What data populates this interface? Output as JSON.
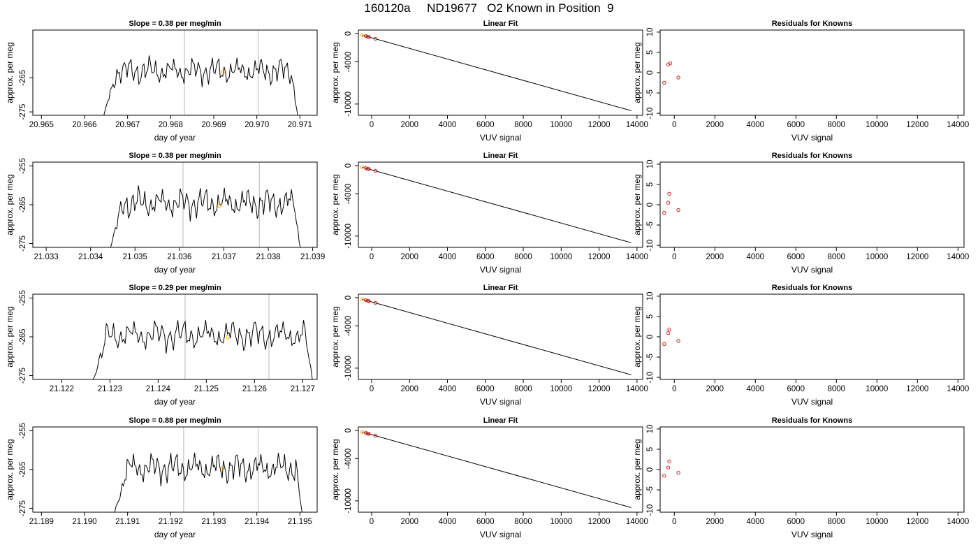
{
  "title": "160120a     ND19677   O2 Known in Position  9",
  "colors": {
    "trace": "#000000",
    "known_marker": "#ffa500",
    "resid_marker": "#cc2222",
    "vline": "#c8c8c8"
  },
  "chart_data": [
    {
      "type": "line",
      "title": "Slope =  0.38  per meg/min",
      "xlabel": "day of year",
      "ylabel": "approx. per meg",
      "xlim": [
        20.9648,
        20.9714
      ],
      "ylim": [
        -276,
        -251
      ],
      "xticks": [
        "20.965",
        "20.966",
        "20.967",
        "20.968",
        "20.969",
        "20.970",
        "20.971"
      ],
      "yticks": [
        "-275",
        "-265"
      ],
      "vlines": [
        20.96832,
        20.97003
      ],
      "trace_start": 20.96645,
      "trace_end": 20.97095,
      "known_point": {
        "x": 20.96922,
        "y": -263.2
      }
    },
    {
      "type": "line",
      "title": "Slope =  0.38  per meg/min",
      "xlabel": "day of year",
      "ylabel": "approx. per meg",
      "xlim": [
        21.0327,
        21.0391
      ],
      "ylim": [
        -276,
        -254
      ],
      "xticks": [
        "21.033",
        "21.034",
        "21.035",
        "21.036",
        "21.037",
        "21.038",
        "21.039"
      ],
      "yticks": [
        "-275",
        "-265",
        "-255"
      ],
      "vlines": [
        21.03608,
        21.0378
      ],
      "trace_start": 21.03445,
      "trace_end": 21.03872,
      "known_point": {
        "x": 21.0369,
        "y": -265.2
      }
    },
    {
      "type": "line",
      "title": "Slope =  0.29  per meg/min",
      "xlabel": "day of year",
      "ylabel": "approx. per meg",
      "xlim": [
        21.1214,
        21.1273
      ],
      "ylim": [
        -276,
        -254
      ],
      "xticks": [
        "21.122",
        "21.123",
        "21.124",
        "21.125",
        "21.126",
        "21.127"
      ],
      "yticks": [
        "-275",
        "-265",
        "-255"
      ],
      "vlines": [
        21.12456,
        21.1263
      ],
      "trace_start": 21.12265,
      "trace_end": 21.1272,
      "known_point": {
        "x": 21.12545,
        "y": -265.1
      }
    },
    {
      "type": "line",
      "title": "Slope =  0.88  per meg/min",
      "xlabel": "day of year",
      "ylabel": "approx. per meg",
      "xlim": [
        21.1888,
        21.1954
      ],
      "ylim": [
        -276,
        -254
      ],
      "xticks": [
        "21.189",
        "21.190",
        "21.191",
        "21.192",
        "21.193",
        "21.194",
        "21.195"
      ],
      "yticks": [
        "-275",
        "-265",
        "-255"
      ],
      "vlines": [
        21.1923,
        21.19403
      ],
      "trace_start": 21.1907,
      "trace_end": 21.19505,
      "known_point": {
        "x": 21.1932,
        "y": -264.7
      }
    },
    {
      "type": "scatter",
      "title": "Linear Fit",
      "xlabel": "VUV signal",
      "ylabel": "approx. per meg",
      "xlim": [
        -700,
        14300
      ],
      "ylim": [
        -11600,
        500
      ],
      "xticks": [
        0,
        2000,
        4000,
        6000,
        8000,
        10000,
        12000,
        14000
      ],
      "yticks": [
        0,
        -4000,
        -10000
      ],
      "fit_line": {
        "x": [
          -500,
          13700
        ],
        "y": [
          -220,
          -10950
        ]
      },
      "points": [
        [
          -500,
          -220
        ],
        [
          -300,
          -360
        ],
        [
          -200,
          -450
        ],
        [
          -150,
          -480
        ],
        [
          200,
          -740
        ]
      ],
      "highlight": [
        -500,
        -220
      ]
    },
    {
      "type": "scatter",
      "title": "Linear Fit",
      "xlabel": "VUV signal",
      "ylabel": "approx. per meg",
      "xlim": [
        -700,
        14300
      ],
      "ylim": [
        -11600,
        500
      ],
      "xticks": [
        0,
        2000,
        4000,
        6000,
        8000,
        10000,
        12000,
        14000
      ],
      "yticks": [
        0,
        -4000,
        -10000
      ],
      "fit_line": {
        "x": [
          -500,
          13700
        ],
        "y": [
          -220,
          -10950
        ]
      },
      "points": [
        [
          -500,
          -220
        ],
        [
          -300,
          -360
        ],
        [
          -200,
          -450
        ],
        [
          -150,
          -480
        ],
        [
          200,
          -740
        ]
      ],
      "highlight": [
        -500,
        -220
      ]
    },
    {
      "type": "scatter",
      "title": "Linear Fit",
      "xlabel": "VUV signal",
      "ylabel": "approx. per meg",
      "xlim": [
        -700,
        14300
      ],
      "ylim": [
        -11600,
        500
      ],
      "xticks": [
        0,
        2000,
        4000,
        6000,
        8000,
        10000,
        12000,
        14000
      ],
      "yticks": [
        0,
        -4000,
        -10000
      ],
      "fit_line": {
        "x": [
          -500,
          13700
        ],
        "y": [
          -220,
          -10950
        ]
      },
      "points": [
        [
          -500,
          -220
        ],
        [
          -300,
          -360
        ],
        [
          -200,
          -450
        ],
        [
          -150,
          -480
        ],
        [
          200,
          -740
        ]
      ],
      "highlight": [
        -500,
        -220
      ]
    },
    {
      "type": "scatter",
      "title": "Linear Fit",
      "xlabel": "VUV signal",
      "ylabel": "approx. per meg",
      "xlim": [
        -700,
        14300
      ],
      "ylim": [
        -11600,
        500
      ],
      "xticks": [
        0,
        2000,
        4000,
        6000,
        8000,
        10000,
        12000,
        14000
      ],
      "yticks": [
        0,
        -4000,
        -10000
      ],
      "fit_line": {
        "x": [
          -500,
          13700
        ],
        "y": [
          -220,
          -10950
        ]
      },
      "points": [
        [
          -500,
          -220
        ],
        [
          -300,
          -360
        ],
        [
          -200,
          -450
        ],
        [
          -150,
          -480
        ],
        [
          200,
          -740
        ]
      ],
      "highlight": [
        -500,
        -220
      ]
    },
    {
      "type": "scatter",
      "title": "Residuals for Knowns",
      "xlabel": "VUV signal",
      "ylabel": "approx. per meg",
      "xlim": [
        -700,
        14300
      ],
      "ylim": [
        -10.5,
        10.5
      ],
      "xticks": [
        0,
        2000,
        4000,
        6000,
        8000,
        10000,
        12000,
        14000
      ],
      "yticks": [
        10,
        5,
        0,
        -5,
        -10
      ],
      "points": [
        [
          -500,
          -2.5
        ],
        [
          -300,
          2.0
        ],
        [
          -200,
          2.3
        ],
        [
          200,
          -1.2
        ]
      ]
    },
    {
      "type": "scatter",
      "title": "Residuals for Knowns",
      "xlabel": "VUV signal",
      "ylabel": "approx. per meg",
      "xlim": [
        -700,
        14300
      ],
      "ylim": [
        -10.5,
        10.5
      ],
      "xticks": [
        0,
        2000,
        4000,
        6000,
        8000,
        10000,
        12000,
        14000
      ],
      "yticks": [
        10,
        5,
        0,
        -5,
        -10
      ],
      "points": [
        [
          -500,
          -2.0
        ],
        [
          -300,
          0.5
        ],
        [
          -250,
          2.7
        ],
        [
          200,
          -1.3
        ]
      ]
    },
    {
      "type": "scatter",
      "title": "Residuals for Knowns",
      "xlabel": "VUV signal",
      "ylabel": "approx. per meg",
      "xlim": [
        -700,
        14300
      ],
      "ylim": [
        -10.5,
        10.5
      ],
      "xticks": [
        0,
        2000,
        4000,
        6000,
        8000,
        10000,
        12000,
        14000
      ],
      "yticks": [
        10,
        5,
        0,
        -5,
        -10
      ],
      "points": [
        [
          -500,
          -1.8
        ],
        [
          -300,
          0.9
        ],
        [
          -250,
          1.8
        ],
        [
          200,
          -1.0
        ]
      ]
    },
    {
      "type": "scatter",
      "title": "Residuals for Knowns",
      "xlabel": "VUV signal",
      "ylabel": "approx. per meg",
      "xlim": [
        -700,
        14300
      ],
      "ylim": [
        -10.5,
        10.5
      ],
      "xticks": [
        0,
        2000,
        4000,
        6000,
        8000,
        10000,
        12000,
        14000
      ],
      "yticks": [
        10,
        5,
        0,
        -5,
        -10
      ],
      "points": [
        [
          -500,
          -1.5
        ],
        [
          -300,
          0.5
        ],
        [
          -250,
          2.0
        ],
        [
          200,
          -0.8
        ]
      ]
    }
  ]
}
